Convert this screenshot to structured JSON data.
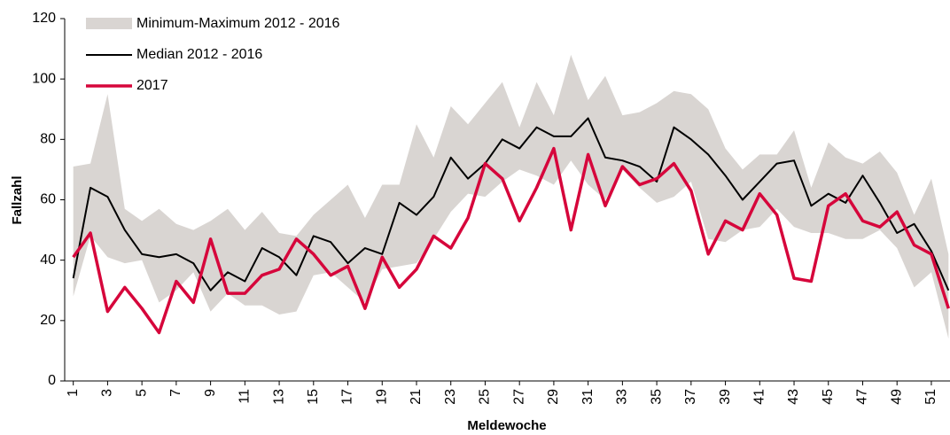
{
  "chart_data": {
    "type": "line",
    "xlabel": "Meldewoche",
    "ylabel": "Fallzahl",
    "x": [
      1,
      2,
      3,
      4,
      5,
      6,
      7,
      8,
      9,
      10,
      11,
      12,
      13,
      14,
      15,
      16,
      17,
      18,
      19,
      20,
      21,
      22,
      23,
      24,
      25,
      26,
      27,
      28,
      29,
      30,
      31,
      32,
      33,
      34,
      35,
      36,
      37,
      38,
      39,
      40,
      41,
      42,
      43,
      44,
      45,
      46,
      47,
      48,
      49,
      50,
      51,
      52
    ],
    "xlim": [
      0.5,
      52.5
    ],
    "xticks": [
      1,
      3,
      5,
      7,
      9,
      11,
      13,
      15,
      17,
      19,
      21,
      23,
      25,
      27,
      29,
      31,
      33,
      35,
      37,
      39,
      41,
      43,
      45,
      47,
      49,
      51
    ],
    "ylim": [
      0,
      120
    ],
    "yticks": [
      0,
      20,
      40,
      60,
      80,
      100,
      120
    ],
    "grid": false,
    "legend": "upper left",
    "band": {
      "name": "Minimum-Maximum 2012 - 2016",
      "color": "#d9d5d2",
      "lower": [
        28,
        48,
        41,
        39,
        40,
        26,
        30,
        36,
        23,
        29,
        25,
        25,
        22,
        23,
        35,
        36,
        31,
        26,
        37,
        38,
        39,
        47,
        56,
        62,
        61,
        66,
        70,
        68,
        65,
        73,
        65,
        60,
        70,
        64,
        59,
        61,
        66,
        47,
        46,
        50,
        51,
        57,
        51,
        49,
        49,
        47,
        47,
        50,
        44,
        31,
        36,
        14
      ],
      "upper": [
        71,
        72,
        95,
        57,
        53,
        57,
        52,
        50,
        53,
        57,
        50,
        56,
        49,
        48,
        55,
        60,
        65,
        54,
        65,
        65,
        85,
        74,
        91,
        85,
        92,
        99,
        84,
        99,
        88,
        108,
        93,
        101,
        88,
        89,
        92,
        96,
        95,
        90,
        77,
        70,
        75,
        75,
        83,
        64,
        79,
        74,
        72,
        76,
        69,
        55,
        67,
        42
      ]
    },
    "series": [
      {
        "name": "Median 2012 - 2016",
        "color": "#000000",
        "values": [
          34,
          64,
          61,
          50,
          42,
          41,
          42,
          39,
          30,
          36,
          33,
          44,
          41,
          35,
          48,
          46,
          39,
          44,
          42,
          59,
          55,
          61,
          74,
          67,
          72,
          80,
          77,
          84,
          81,
          81,
          87,
          74,
          73,
          71,
          66,
          84,
          80,
          75,
          68,
          60,
          66,
          72,
          73,
          58,
          62,
          59,
          68,
          59,
          49,
          52,
          43,
          30
        ]
      },
      {
        "name": "2017",
        "color": "#d6063b",
        "values": [
          41,
          49,
          23,
          31,
          24,
          16,
          33,
          26,
          47,
          29,
          29,
          35,
          37,
          47,
          42,
          35,
          38,
          24,
          41,
          31,
          37,
          48,
          44,
          54,
          72,
          67,
          53,
          64,
          77,
          50,
          75,
          58,
          71,
          65,
          67,
          72,
          63,
          42,
          53,
          50,
          62,
          55,
          34,
          33,
          58,
          62,
          53,
          51,
          56,
          45,
          42,
          24
        ]
      }
    ]
  }
}
